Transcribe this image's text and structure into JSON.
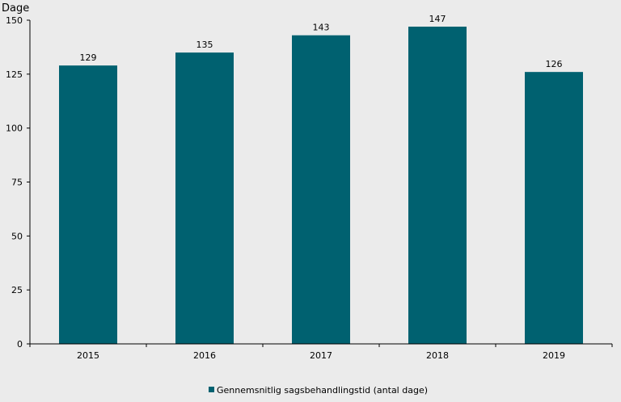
{
  "chart_data": {
    "type": "bar",
    "title": "",
    "xlabel": "",
    "ylabel": "Dage",
    "categories": [
      "2015",
      "2016",
      "2017",
      "2018",
      "2019"
    ],
    "series": [
      {
        "name": "Gennemsnitlig sagsbehandlingstid (antal dage)",
        "values": [
          129,
          135,
          143,
          147,
          126
        ],
        "color": "#006170"
      }
    ],
    "data_labels": [
      "129",
      "135",
      "143",
      "147",
      "126"
    ],
    "ylim": [
      0,
      150
    ],
    "yticks": [
      0,
      25,
      50,
      75,
      100,
      125,
      150
    ],
    "ytick_labels": [
      "0",
      "25",
      "50",
      "75",
      "100",
      "125",
      "150"
    ],
    "grid": false,
    "legend_position": "bottom-center",
    "background_color": "#ebebeb"
  }
}
